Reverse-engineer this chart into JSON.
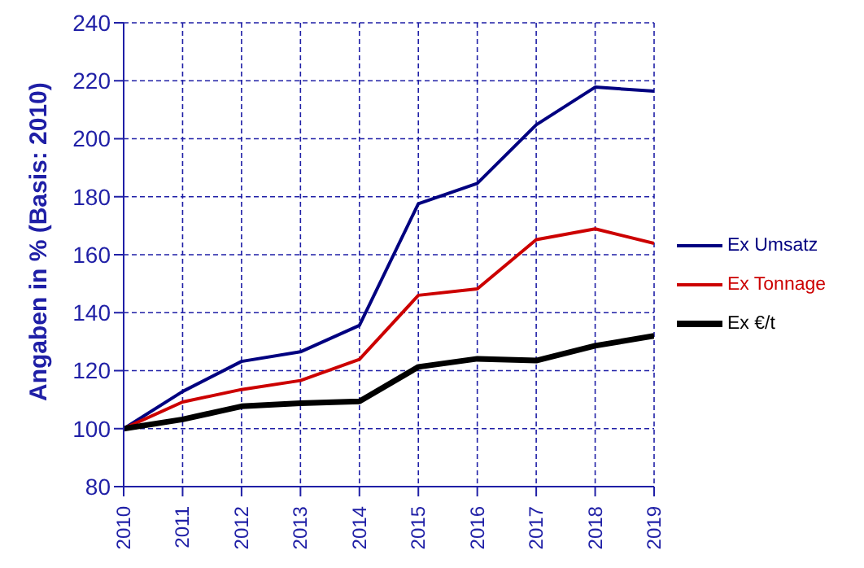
{
  "chart_data": {
    "type": "line",
    "ylabel": "Angaben in % (Basis: 2010)",
    "x": [
      2010,
      2011,
      2012,
      2013,
      2014,
      2015,
      2016,
      2017,
      2018,
      2019
    ],
    "series": [
      {
        "name": "Ex Umsatz",
        "color": "#000080",
        "values": [
          100,
          112.8,
          123.2,
          126.5,
          135.6,
          177.6,
          184.6,
          204.8,
          217.8,
          216.4
        ]
      },
      {
        "name": "Ex Tonnage",
        "color": "#cc0000",
        "values": [
          100,
          109.2,
          113.5,
          116.6,
          123.9,
          146,
          148.2,
          165.2,
          168.9,
          163.9
        ]
      },
      {
        "name": "Ex €/t",
        "color": "#000000",
        "values": [
          100,
          103.2,
          107.7,
          108.8,
          109.4,
          121.3,
          124.1,
          123.5,
          128.6,
          132
        ]
      }
    ],
    "xlim": [
      2010,
      2019
    ],
    "xticks": [
      2010,
      2011,
      2012,
      2013,
      2014,
      2015,
      2016,
      2017,
      2018,
      2019
    ],
    "ylim": [
      80,
      240
    ],
    "yticks": [
      80,
      100,
      120,
      140,
      160,
      180,
      200,
      220,
      240
    ],
    "grid": true,
    "legend": "right",
    "marker": "none",
    "line_style": "solid"
  }
}
